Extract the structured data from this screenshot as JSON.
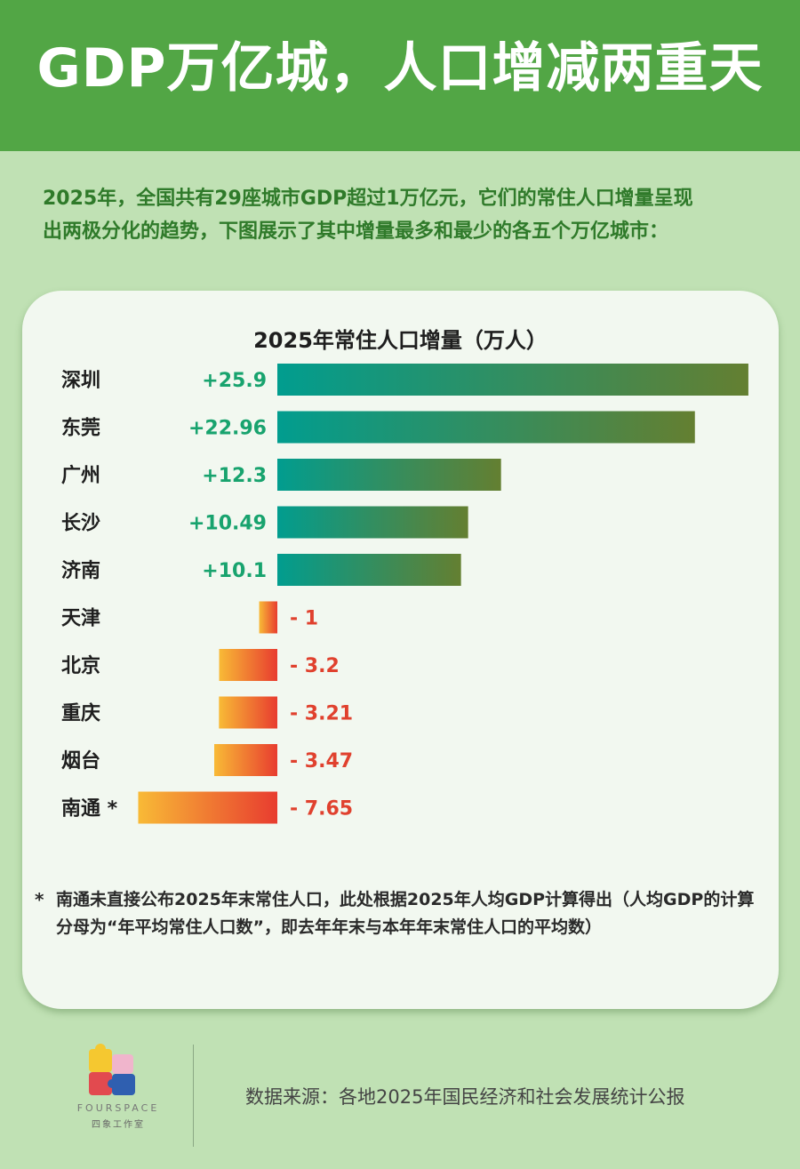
{
  "header": {
    "title": "GDP万亿城，人口增减两重天"
  },
  "intro": {
    "line1": "2025年，全国共有29座城市GDP超过1万亿元，它们的常住人口增量呈现",
    "line2": "出两极分化的趋势，下图展示了其中增量最多和最少的各五个万亿城市："
  },
  "chart_data": {
    "type": "bar",
    "title": "2025年常住人口增量（万人）",
    "categories": [
      "深圳",
      "东莞",
      "广州",
      "长沙",
      "济南",
      "天津",
      "北京",
      "重庆",
      "烟台",
      "南通 *"
    ],
    "values": [
      25.9,
      22.96,
      12.3,
      10.49,
      10.1,
      -1,
      -3.2,
      -3.21,
      -3.47,
      -7.65
    ],
    "value_labels": [
      "+25.9",
      "+22.96",
      "+12.3",
      "+10.49",
      "+10.1",
      "- 1",
      "- 3.2",
      "- 3.21",
      "- 3.47",
      "- 7.65"
    ],
    "orientation": "horizontal",
    "colors": {
      "positive_start": "#019d8f",
      "positive_end": "#647f31",
      "negative_start": "#f8ba36",
      "negative_end": "#e83c2f",
      "positive_label": "#18a36e",
      "negative_label": "#e0412e"
    }
  },
  "footnote": {
    "star": "*",
    "text": "南通未直接公布2025年末常住人口，此处根据2025年人均GDP计算得出（人均GDP的计算分母为“年平均常住人口数”，即去年年末与本年年末常住人口的平均数）"
  },
  "logo": {
    "text": "FOURSPACE",
    "subtitle": "四象工作室",
    "icon": "puzzle-logo-icon"
  },
  "source": {
    "text": "数据来源：各地2025年国民经济和社会发展统计公报"
  }
}
